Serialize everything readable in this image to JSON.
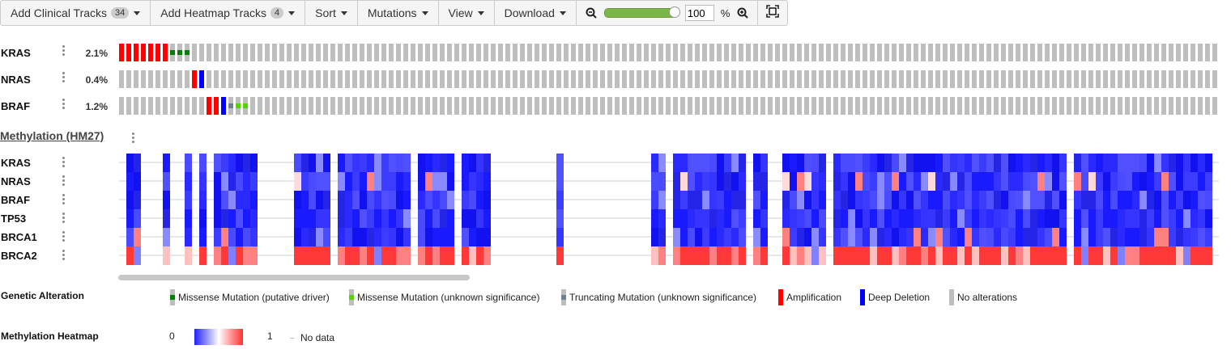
{
  "toolbar": {
    "clinical_label": "Add Clinical Tracks",
    "clinical_count": "34",
    "heatmap_label": "Add Heatmap Tracks",
    "heatmap_count": "4",
    "sort_label": "Sort",
    "mutations_label": "Mutations",
    "view_label": "View",
    "download_label": "Download",
    "zoom_value": "100",
    "zoom_unit": "%",
    "zoom_level": 1.0
  },
  "genes": [
    {
      "name": "KRAS",
      "pct": "2.1%"
    },
    {
      "name": "NRAS",
      "pct": "0.4%"
    },
    {
      "name": "BRAF",
      "pct": "1.2%"
    }
  ],
  "heatmap": {
    "title": "Methylation (HM27)",
    "genes": [
      "KRAS",
      "NRAS",
      "BRAF",
      "TP53",
      "BRCA1",
      "BRCA2"
    ]
  },
  "legend": {
    "genetic_title": "Genetic Alteration",
    "items": [
      {
        "label": "Missense Mutation (putative driver)",
        "color": "#008000"
      },
      {
        "label": "Missense Mutation (unknown significance)",
        "color": "#53d400"
      },
      {
        "label": "Truncating Mutation (unknown significance)",
        "color": "#708090"
      },
      {
        "label": "Amplification",
        "color": "#ff0000"
      },
      {
        "label": "Deep Deletion",
        "color": "#0000ff"
      },
      {
        "label": "No alterations",
        "color": "#bebebe"
      }
    ],
    "methylation_title": "Methylation Heatmap",
    "min_label": "0",
    "max_label": "1",
    "nodata_label": "No data"
  },
  "colors": {
    "no_alteration": "#bebebe",
    "amplification": "#ff0000",
    "deletion": "#0000ff",
    "missense_driver": "#008000",
    "missense_vus": "#53d400",
    "truncating_vus": "#708090",
    "heat_low": "#2020ff",
    "heat_high": "#ff3030"
  }
}
